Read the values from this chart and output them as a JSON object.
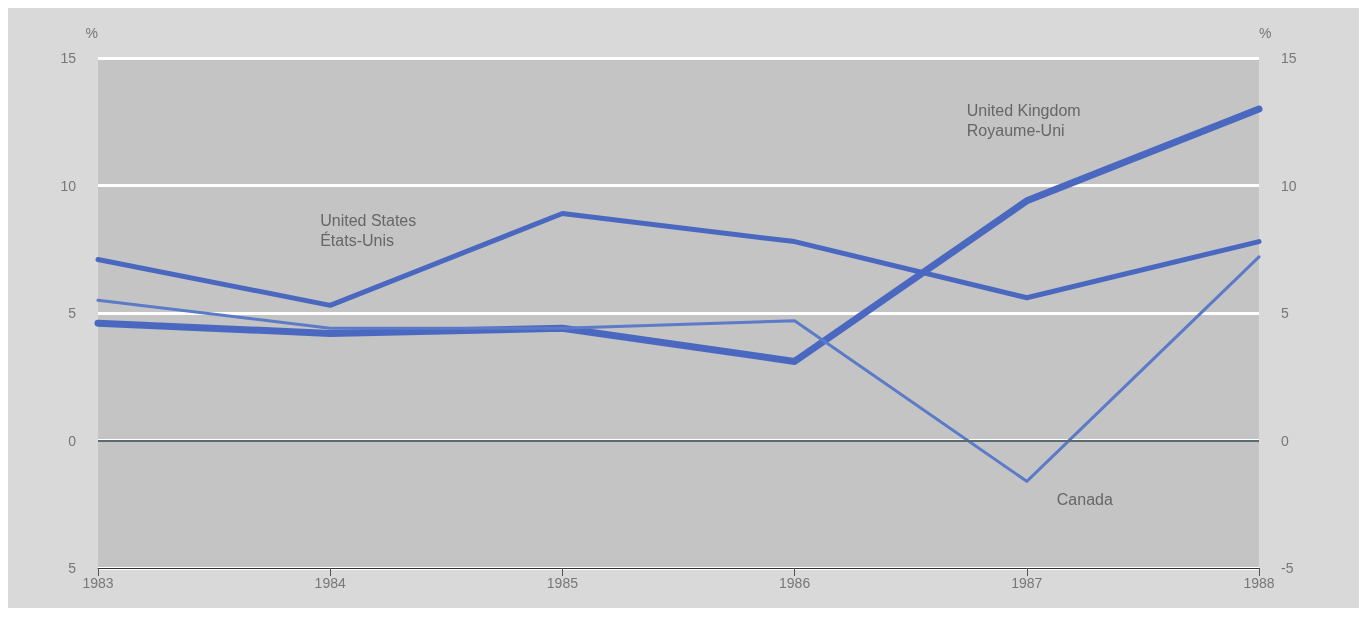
{
  "chart_data": {
    "type": "line",
    "categories": [
      "1983",
      "1984",
      "1985",
      "1986",
      "1987",
      "1988"
    ],
    "series": [
      {
        "name": "United States\nÉtats-Unis",
        "color": "#4a68c0",
        "values": [
          7.1,
          5.3,
          8.9,
          7.8,
          5.6,
          7.8
        ]
      },
      {
        "name": "United Kingdom\nRoyaume-Uni",
        "color": "#4a68c0",
        "values": [
          4.6,
          4.2,
          4.4,
          3.1,
          9.4,
          13.0
        ]
      },
      {
        "name": "Canada",
        "color": "#5b7ac8",
        "values": [
          5.5,
          4.4,
          4.4,
          4.7,
          -1.6,
          7.2
        ]
      }
    ],
    "ylabel": "%",
    "y2label": "%",
    "ylim": [
      -5,
      15
    ],
    "yticks": [
      {
        "value": -5,
        "label": "5"
      },
      0,
      5,
      10,
      15
    ],
    "y2lim": [
      -5,
      15
    ],
    "y2ticks": [
      -5,
      0,
      5,
      10,
      15
    ],
    "ref_lines": [
      {
        "axis": "y",
        "value": 0,
        "color": "#5a6a70"
      }
    ],
    "grid": "y",
    "legend": false,
    "marker": "none",
    "line_style": "solid"
  }
}
